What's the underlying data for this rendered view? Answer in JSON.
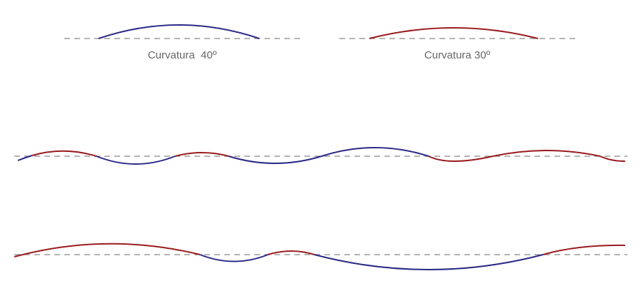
{
  "legend": [
    {
      "label": "Curvatura  40º"
    },
    {
      "label": "Curvatura 30º"
    }
  ]
}
